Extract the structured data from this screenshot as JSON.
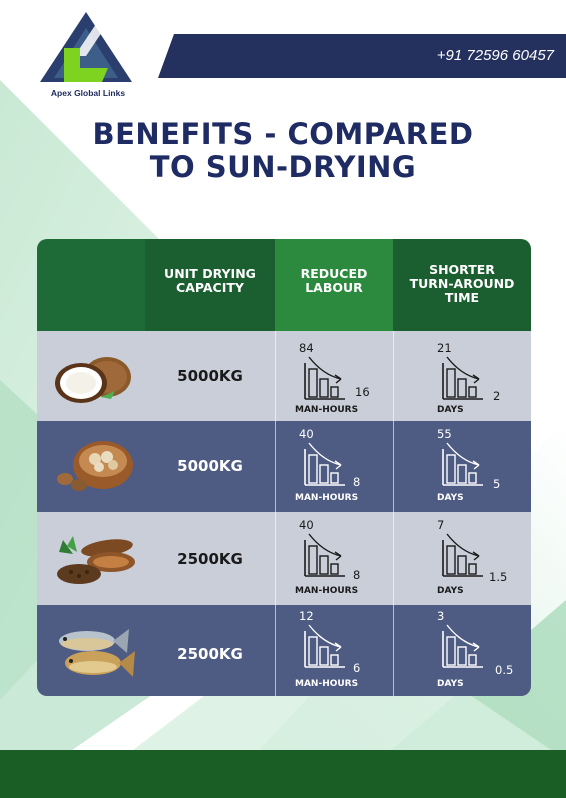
{
  "brand": {
    "name": "Apex Global Links",
    "logo_letters": "AL"
  },
  "contact": {
    "phone": "+91 72596 60457"
  },
  "title": {
    "line1": "BENEFITS - COMPARED",
    "line2": "TO SUN-DRYING"
  },
  "table": {
    "headers": [
      {
        "line1": "UNIT DRYING",
        "line2": "CAPACITY",
        "line3": ""
      },
      {
        "line1": "REDUCED",
        "line2": "LABOUR",
        "line3": ""
      },
      {
        "line1": "SHORTER",
        "line2": "TURN-AROUND",
        "line3": "TIME"
      }
    ],
    "rows": [
      {
        "item_icon": "coconut-icon",
        "capacity": "5000KG",
        "labour": {
          "before": "84",
          "after": "16",
          "unit": "MAN-HOURS"
        },
        "time": {
          "before": "21",
          "after": "2",
          "unit": "DAYS"
        }
      },
      {
        "item_icon": "nuts-bowl-icon",
        "capacity": "5000KG",
        "labour": {
          "before": "40",
          "after": "8",
          "unit": "MAN-HOURS"
        },
        "time": {
          "before": "55",
          "after": "5",
          "unit": "DAYS"
        }
      },
      {
        "item_icon": "cassava-icon",
        "capacity": "2500KG",
        "labour": {
          "before": "40",
          "after": "8",
          "unit": "MAN-HOURS"
        },
        "time": {
          "before": "7",
          "after": "1.5",
          "unit": "DAYS"
        }
      },
      {
        "item_icon": "fish-icon",
        "capacity": "2500KG",
        "labour": {
          "before": "12",
          "after": "6",
          "unit": "MAN-HOURS"
        },
        "time": {
          "before": "3",
          "after": "0.5",
          "unit": "DAYS"
        }
      }
    ]
  },
  "colors": {
    "navy": "#1f2b63",
    "header_green": "#1f6b38",
    "row_light": "#c9ced9",
    "row_dark": "#4e5b82",
    "footer_green": "#1a5e26",
    "logo_green": "#7ed321"
  }
}
